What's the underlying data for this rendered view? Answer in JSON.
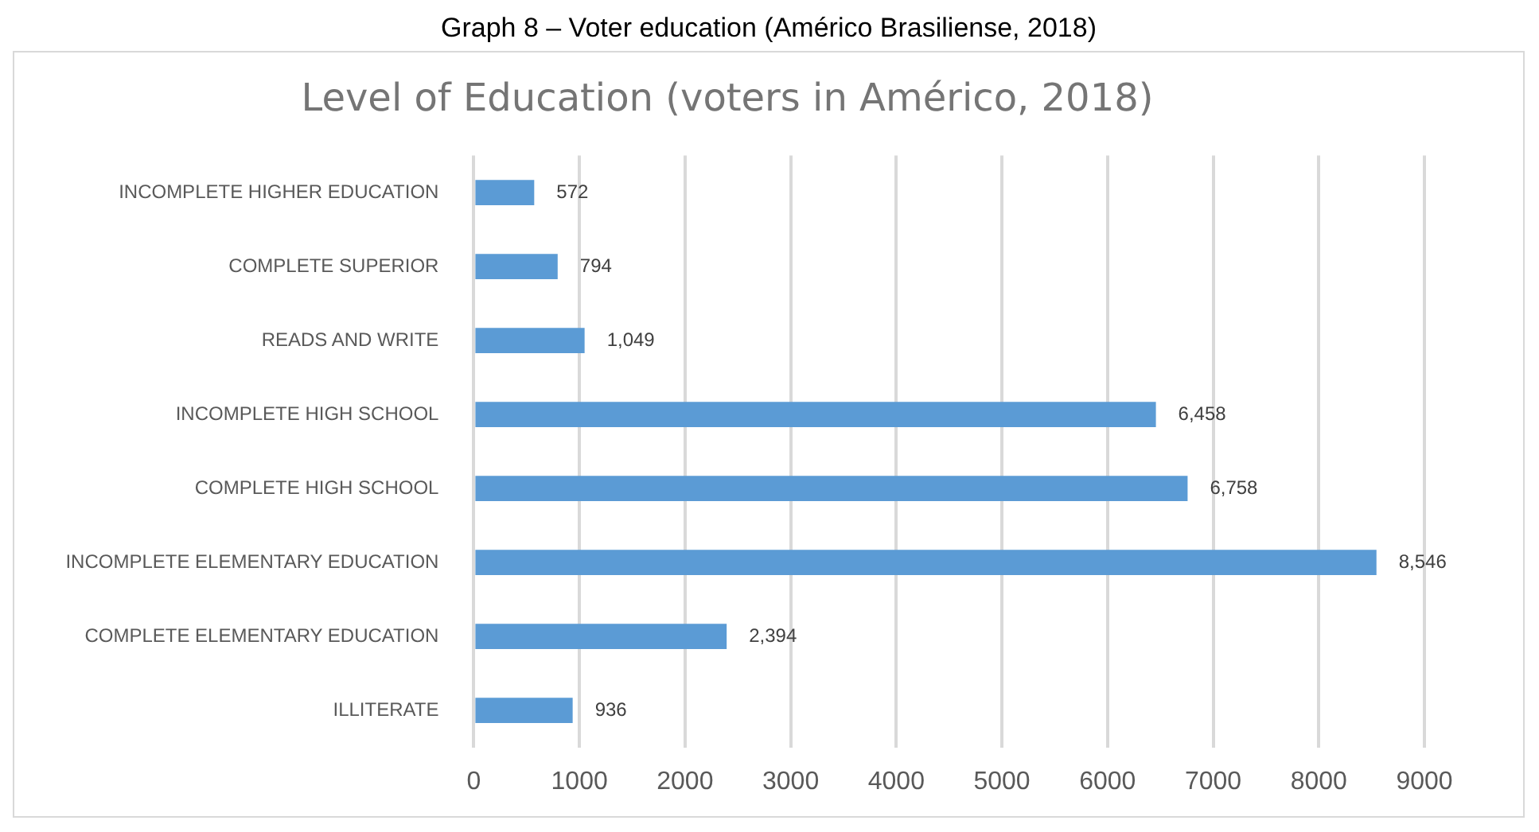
{
  "chart_data": {
    "type": "bar",
    "orientation": "horizontal",
    "title": "Graph 8 – Voter education (Américo Brasiliense, 2018)",
    "subtitle": "Level of Education (voters in Américo, 2018)",
    "categories": [
      "INCOMPLETE HIGHER EDUCATION",
      "COMPLETE SUPERIOR",
      "READS AND WRITE",
      "INCOMPLETE HIGH SCHOOL",
      "COMPLETE HIGH SCHOOL",
      "INCOMPLETE ELEMENTARY EDUCATION",
      "COMPLETE ELEMENTARY EDUCATION",
      "ILLITERATE"
    ],
    "values": [
      572,
      794,
      1049,
      6458,
      6758,
      8546,
      2394,
      936
    ],
    "value_labels": [
      "572",
      "794",
      "1,049",
      "6,458",
      "6,758",
      "8,546",
      "2,394",
      "936"
    ],
    "color": "#5b9bd5",
    "xlim": [
      0,
      9000
    ],
    "xticks": [
      0,
      1000,
      2000,
      3000,
      4000,
      5000,
      6000,
      7000,
      8000,
      9000
    ],
    "grid": "x",
    "legend": false
  }
}
